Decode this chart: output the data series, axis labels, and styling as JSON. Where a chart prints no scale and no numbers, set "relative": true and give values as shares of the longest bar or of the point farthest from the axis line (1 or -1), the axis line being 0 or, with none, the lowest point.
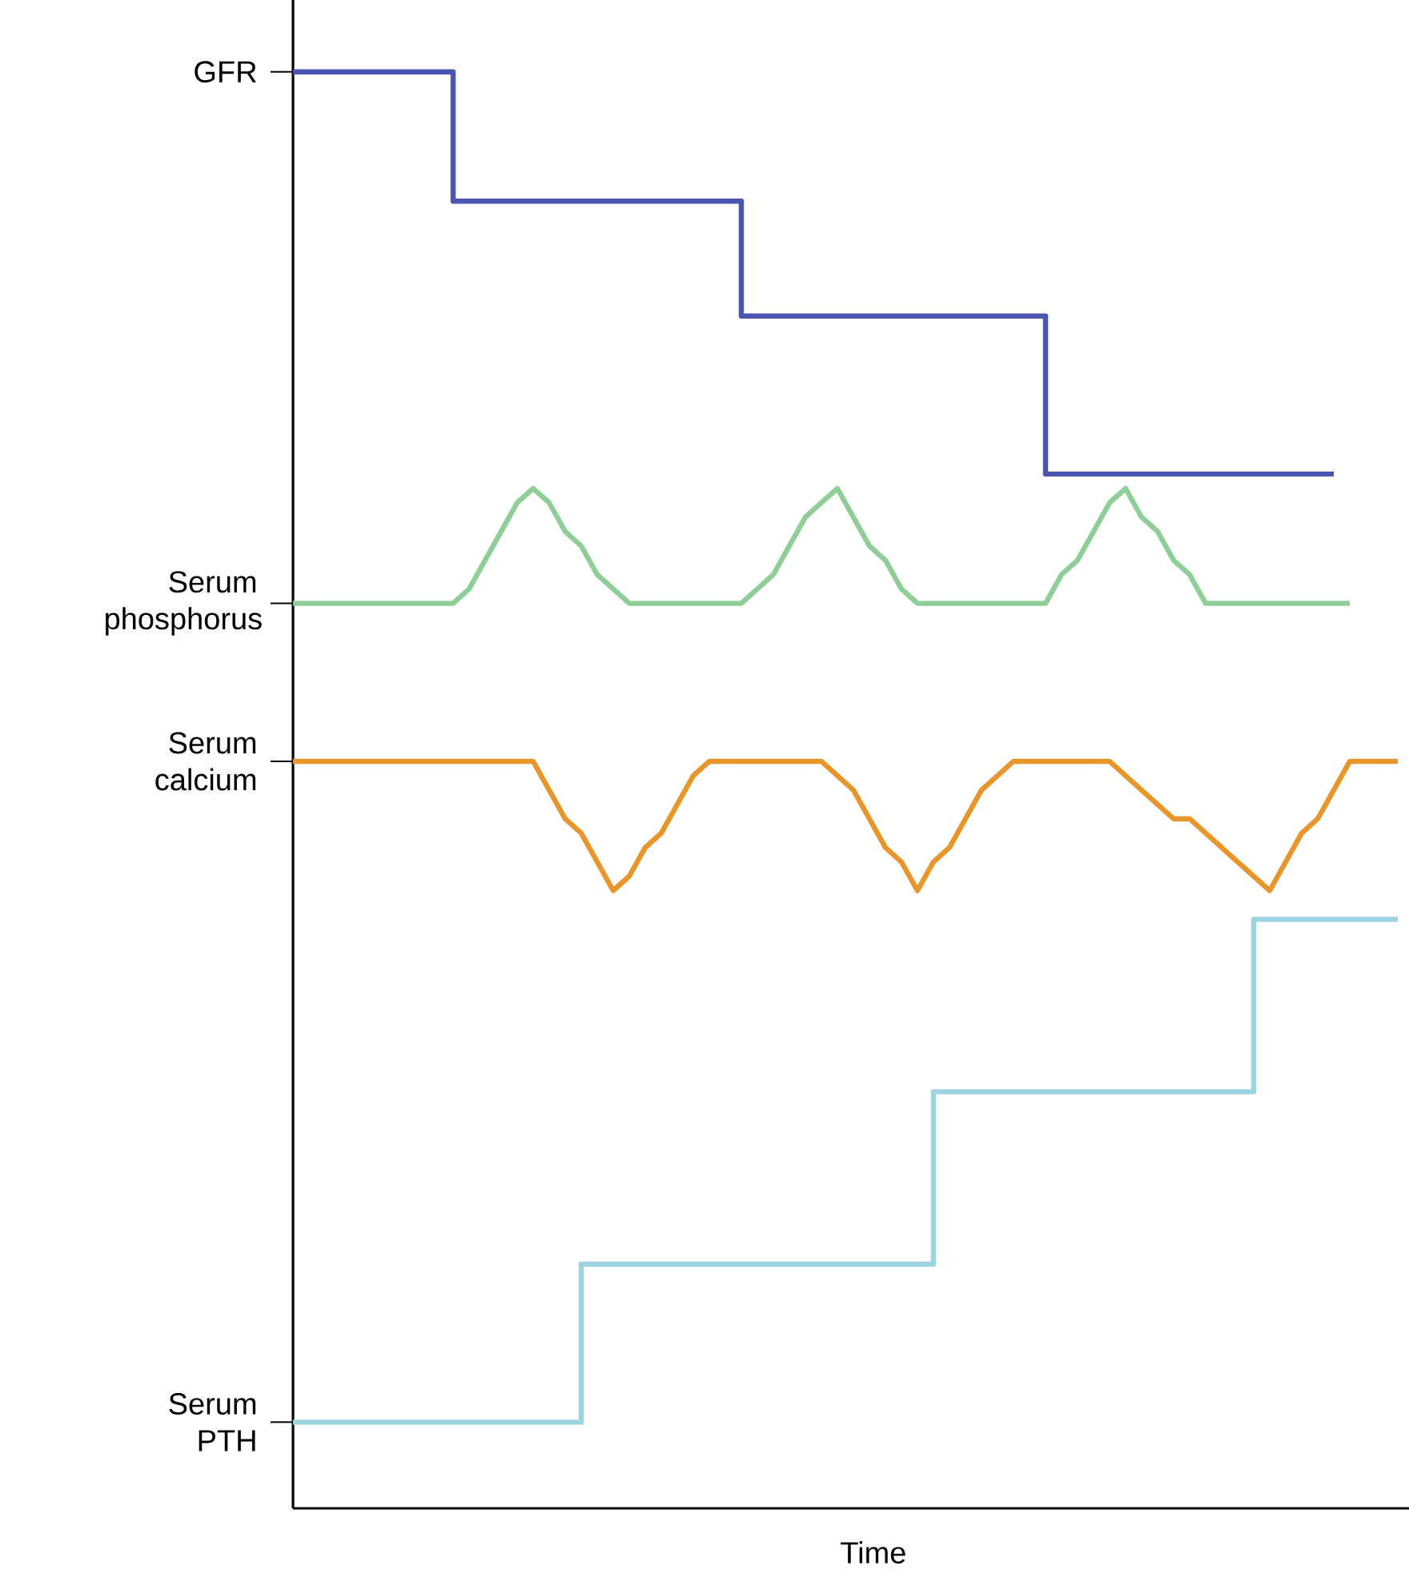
{
  "chart_data": {
    "type": "line",
    "relative": true,
    "xlabel": "Time",
    "categories": [
      null,
      null,
      null,
      null,
      null,
      null,
      null,
      null,
      null,
      null,
      null,
      null,
      null,
      null,
      null,
      null,
      null,
      null,
      null,
      null,
      null,
      null,
      null,
      null,
      null,
      null,
      null,
      null,
      null,
      null,
      null,
      null,
      null,
      null,
      null,
      null,
      null,
      null,
      null,
      null,
      null,
      null,
      null,
      null,
      null,
      null,
      null,
      null,
      null,
      null,
      null,
      null,
      null,
      null,
      null,
      null,
      null,
      null,
      null,
      null,
      null,
      null,
      null,
      null,
      null,
      null,
      null,
      null,
      null,
      null
    ],
    "series": [
      {
        "name": "GFR",
        "type": "step",
        "color": "#4a55b0",
        "values": [
          1,
          1,
          1,
          1,
          1,
          1,
          1,
          1,
          1,
          1,
          0.91,
          0.91,
          0.91,
          0.91,
          0.91,
          0.91,
          0.91,
          0.91,
          0.91,
          0.91,
          0.91,
          0.91,
          0.91,
          0.91,
          0.91,
          0.91,
          0.91,
          0.91,
          0.83,
          0.83,
          0.83,
          0.83,
          0.83,
          0.83,
          0.83,
          0.83,
          0.83,
          0.83,
          0.83,
          0.83,
          0.83,
          0.83,
          0.83,
          0.83,
          0.83,
          0.83,
          0.83,
          0.72,
          0.72,
          0.72,
          0.72,
          0.72,
          0.72,
          0.72,
          0.72,
          0.72,
          0.72,
          0.72,
          0.72,
          0.72,
          0.72,
          0.72,
          0.72,
          0.72,
          0.72,
          0.72,
          null,
          null,
          null,
          null
        ]
      },
      {
        "name": "Serum phosphorus",
        "color": "#8fcf97",
        "values": [
          0.63,
          0.63,
          0.63,
          0.63,
          0.63,
          0.63,
          0.63,
          0.63,
          0.63,
          0.63,
          0.63,
          0.64,
          0.66,
          0.68,
          0.7,
          0.71,
          0.7,
          0.68,
          0.67,
          0.65,
          0.64,
          0.63,
          0.63,
          0.63,
          0.63,
          0.63,
          0.63,
          0.63,
          0.63,
          0.64,
          0.65,
          0.67,
          0.69,
          0.7,
          0.71,
          0.69,
          0.67,
          0.66,
          0.64,
          0.63,
          0.63,
          0.63,
          0.63,
          0.63,
          0.63,
          0.63,
          0.63,
          0.63,
          0.65,
          0.66,
          0.68,
          0.7,
          0.71,
          0.69,
          0.68,
          0.66,
          0.65,
          0.63,
          0.63,
          0.63,
          0.63,
          0.63,
          0.63,
          0.63,
          0.63,
          0.63,
          0.63,
          null,
          null,
          null
        ]
      },
      {
        "name": "Serum calcium",
        "color": "#e8962a",
        "values": [
          0.52,
          0.52,
          0.52,
          0.52,
          0.52,
          0.52,
          0.52,
          0.52,
          0.52,
          0.52,
          0.52,
          0.52,
          0.52,
          0.52,
          0.52,
          0.52,
          0.5,
          0.48,
          0.47,
          0.45,
          0.43,
          0.44,
          0.46,
          0.47,
          0.49,
          0.51,
          0.52,
          0.52,
          0.52,
          0.52,
          0.52,
          0.52,
          0.52,
          0.52,
          0.51,
          0.5,
          0.48,
          0.46,
          0.45,
          0.43,
          0.45,
          0.46,
          0.48,
          0.5,
          0.51,
          0.52,
          0.52,
          0.52,
          0.52,
          0.52,
          0.52,
          0.52,
          0.51,
          0.5,
          0.49,
          0.48,
          0.48,
          0.47,
          0.46,
          0.45,
          0.44,
          0.43,
          0.45,
          0.47,
          0.48,
          0.5,
          0.52,
          0.52,
          0.52,
          0.52
        ]
      },
      {
        "name": "Serum PTH",
        "type": "step",
        "color": "#9dd3e0",
        "values": [
          0.06,
          0.06,
          0.06,
          0.06,
          0.06,
          0.06,
          0.06,
          0.06,
          0.06,
          0.06,
          0.06,
          0.06,
          0.06,
          0.06,
          0.06,
          0.06,
          0.06,
          0.06,
          0.17,
          0.17,
          0.17,
          0.17,
          0.17,
          0.17,
          0.17,
          0.17,
          0.17,
          0.17,
          0.17,
          0.17,
          0.17,
          0.17,
          0.17,
          0.17,
          0.17,
          0.17,
          0.17,
          0.17,
          0.17,
          0.17,
          0.29,
          0.29,
          0.29,
          0.29,
          0.29,
          0.29,
          0.29,
          0.29,
          0.29,
          0.29,
          0.29,
          0.29,
          0.29,
          0.29,
          0.29,
          0.29,
          0.29,
          0.29,
          0.29,
          0.29,
          0.41,
          0.41,
          0.41,
          0.41,
          0.41,
          0.41,
          0.41,
          0.41,
          0.41,
          0.41
        ]
      }
    ]
  }
}
